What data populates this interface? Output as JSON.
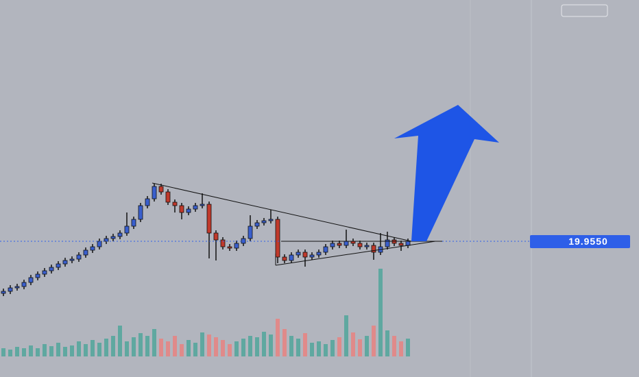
{
  "chart_data": {
    "type": "candlestick",
    "open": [
      19.195,
      19.225,
      19.275,
      19.295,
      19.355,
      19.425,
      19.475,
      19.525,
      19.575,
      19.625,
      19.675,
      19.695,
      19.755,
      19.825,
      19.875,
      19.955,
      19.995,
      20.025,
      20.075,
      20.175,
      20.275,
      20.475,
      20.575,
      20.755,
      20.675,
      20.525,
      20.475,
      20.375,
      20.425,
      20.475,
      20.495,
      20.075,
      19.975,
      19.875,
      19.855,
      19.925,
      19.995,
      20.175,
      20.225,
      20.255,
      20.275,
      19.725,
      19.675,
      19.755,
      19.795,
      19.725,
      19.755,
      19.795,
      19.875,
      19.925,
      19.895,
      19.955,
      19.925,
      19.875,
      19.895,
      19.795,
      19.875,
      19.975,
      19.925,
      19.895
    ],
    "high": [
      19.265,
      19.315,
      19.335,
      19.395,
      19.465,
      19.515,
      19.565,
      19.615,
      19.665,
      19.715,
      19.735,
      19.795,
      19.865,
      19.915,
      19.995,
      20.035,
      20.065,
      20.115,
      20.375,
      20.315,
      20.515,
      20.615,
      20.795,
      20.795,
      20.715,
      20.565,
      20.515,
      20.465,
      20.515,
      20.655,
      20.535,
      20.115,
      20.015,
      19.915,
      19.965,
      20.035,
      20.335,
      20.265,
      20.295,
      20.415,
      20.315,
      19.765,
      19.795,
      19.835,
      19.835,
      19.795,
      19.835,
      19.915,
      19.965,
      19.965,
      20.125,
      19.995,
      19.965,
      19.935,
      19.935,
      20.075,
      20.095,
      20.015,
      19.965,
      19.995
    ],
    "low": [
      19.155,
      19.185,
      19.235,
      19.255,
      19.315,
      19.385,
      19.435,
      19.485,
      19.535,
      19.585,
      19.635,
      19.655,
      19.715,
      19.785,
      19.835,
      19.915,
      19.955,
      19.985,
      20.035,
      20.135,
      20.235,
      20.435,
      20.535,
      20.635,
      20.485,
      20.375,
      20.275,
      20.335,
      20.385,
      20.435,
      19.705,
      19.675,
      19.835,
      19.815,
      19.815,
      19.885,
      19.955,
      20.135,
      20.185,
      20.215,
      19.635,
      19.635,
      19.635,
      19.715,
      19.585,
      19.685,
      19.715,
      19.755,
      19.835,
      19.855,
      19.855,
      19.885,
      19.835,
      19.835,
      19.685,
      19.755,
      19.835,
      19.885,
      19.815,
      19.855
    ],
    "close": [
      19.225,
      19.275,
      19.295,
      19.355,
      19.425,
      19.475,
      19.525,
      19.575,
      19.625,
      19.675,
      19.695,
      19.755,
      19.825,
      19.875,
      19.955,
      19.995,
      20.025,
      20.075,
      20.175,
      20.275,
      20.475,
      20.575,
      20.755,
      20.675,
      20.525,
      20.475,
      20.375,
      20.425,
      20.475,
      20.495,
      20.075,
      19.975,
      19.875,
      19.855,
      19.925,
      19.995,
      20.175,
      20.225,
      20.255,
      20.275,
      19.725,
      19.675,
      19.755,
      19.795,
      19.725,
      19.755,
      19.795,
      19.875,
      19.925,
      19.895,
      19.955,
      19.925,
      19.875,
      19.895,
      19.795,
      19.875,
      19.975,
      19.925,
      19.895,
      19.955
    ],
    "volume": [
      12,
      10,
      14,
      12,
      16,
      12,
      18,
      15,
      20,
      14,
      16,
      22,
      18,
      24,
      20,
      26,
      30,
      45,
      22,
      28,
      34,
      30,
      40,
      26,
      22,
      30,
      18,
      24,
      20,
      35,
      32,
      28,
      24,
      18,
      22,
      26,
      30,
      28,
      36,
      32,
      55,
      40,
      30,
      26,
      34,
      20,
      22,
      18,
      24,
      28,
      60,
      35,
      25,
      30,
      45,
      128,
      38,
      30,
      22,
      26
    ],
    "ylim": [
      17.975,
      23.475
    ],
    "volume_lim": [
      0,
      140
    ],
    "up_color": "#3a5fcd",
    "down_color": "#c0392b",
    "volume_up_color": "#5fa8a0",
    "volume_down_color": "#e08a8a",
    "last_price": {
      "value": 19.955,
      "label": "19.9550"
    }
  }
}
